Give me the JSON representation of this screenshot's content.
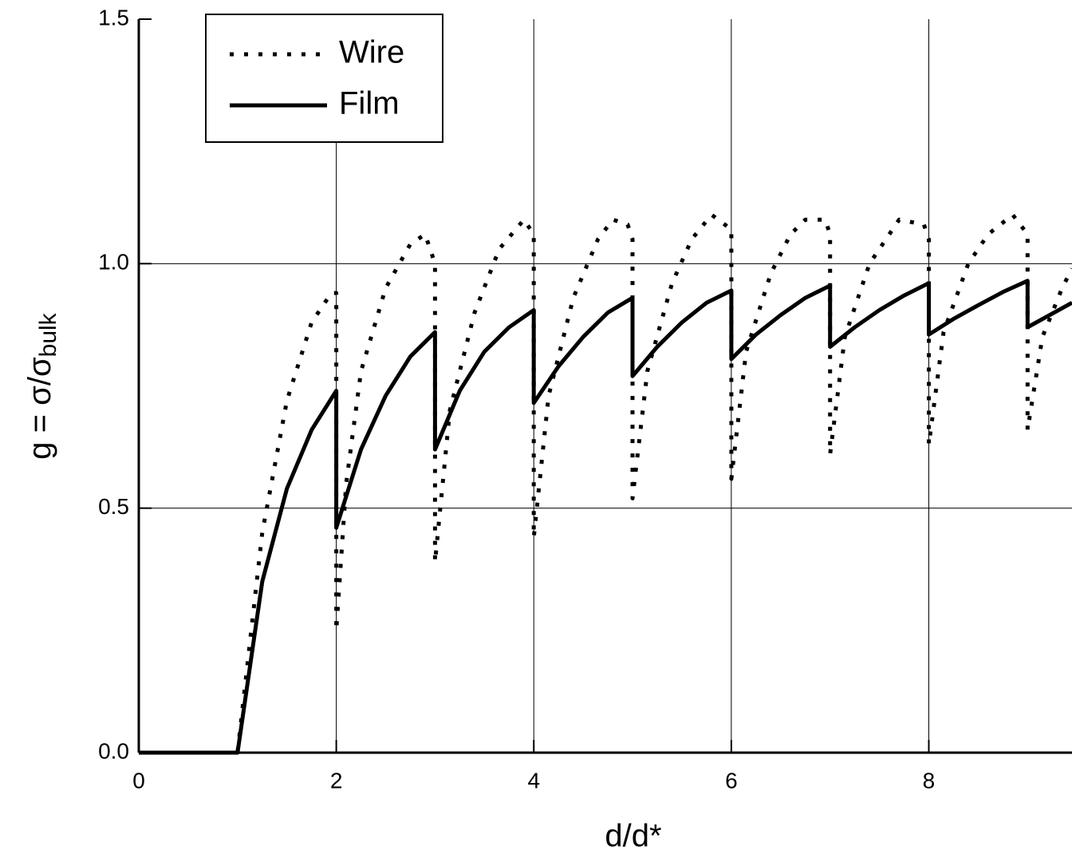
{
  "chart_data": {
    "type": "line",
    "xlabel": "d/d*",
    "ylabel": {
      "text": "g = σ/σ",
      "subscript": "bulk"
    },
    "xlim": [
      0,
      9.45
    ],
    "ylim": [
      0,
      1.5
    ],
    "xticks": [
      0,
      2,
      4,
      6,
      8
    ],
    "yticks": [
      {
        "value": 0,
        "label": "0.0"
      },
      0.5,
      {
        "value": 1,
        "label": "1.0"
      },
      1.5
    ],
    "grid": true,
    "legend": "upper left",
    "series": [
      {
        "name": "Wire",
        "color": "#000000",
        "style": "dotted",
        "x": [
          0,
          1,
          1.25,
          1.5,
          1.75,
          1.95,
          2,
          2,
          2.1,
          2.25,
          2.5,
          2.75,
          2.9,
          3,
          3,
          3.15,
          3.4,
          3.65,
          3.9,
          4,
          4,
          4.15,
          4.4,
          4.65,
          4.8,
          4.95,
          5,
          5,
          5.15,
          5.4,
          5.6,
          5.8,
          6,
          6,
          6.15,
          6.4,
          6.6,
          6.75,
          6.95,
          7,
          7,
          7.15,
          7.4,
          7.7,
          7.95,
          8,
          8,
          8.15,
          8.4,
          8.6,
          8.85,
          9,
          9,
          9.15,
          9.35,
          9.45
        ],
        "values": [
          0,
          0,
          0.45,
          0.72,
          0.88,
          0.94,
          0.94,
          0.25,
          0.55,
          0.78,
          0.95,
          1.04,
          1.06,
          1.0,
          0.39,
          0.7,
          0.9,
          1.03,
          1.09,
          1.06,
          0.44,
          0.73,
          0.93,
          1.05,
          1.09,
          1.08,
          1.05,
          0.52,
          0.78,
          0.96,
          1.05,
          1.1,
          1.07,
          0.56,
          0.82,
          0.98,
          1.06,
          1.09,
          1.09,
          1.06,
          0.61,
          0.85,
          1.0,
          1.09,
          1.08,
          1.05,
          0.63,
          0.86,
          1.0,
          1.06,
          1.1,
          1.06,
          0.66,
          0.85,
          0.95,
          0.99
        ]
      },
      {
        "name": "Film",
        "color": "#000000",
        "style": "solid",
        "x": [
          0,
          1,
          1.25,
          1.5,
          1.75,
          2,
          2,
          2.25,
          2.5,
          2.75,
          3,
          3,
          3.25,
          3.5,
          3.75,
          4,
          4,
          4.25,
          4.5,
          4.75,
          5,
          5,
          5.25,
          5.5,
          5.75,
          6,
          6,
          6.25,
          6.5,
          6.75,
          7,
          7,
          7.25,
          7.5,
          7.75,
          8,
          8,
          8.25,
          8.5,
          8.75,
          9,
          9,
          9.45
        ],
        "values": [
          0,
          0,
          0.35,
          0.54,
          0.66,
          0.74,
          0.46,
          0.62,
          0.73,
          0.81,
          0.86,
          0.62,
          0.74,
          0.82,
          0.87,
          0.905,
          0.715,
          0.79,
          0.85,
          0.9,
          0.93,
          0.77,
          0.83,
          0.88,
          0.92,
          0.945,
          0.805,
          0.855,
          0.895,
          0.93,
          0.955,
          0.83,
          0.87,
          0.905,
          0.935,
          0.96,
          0.855,
          0.887,
          0.915,
          0.942,
          0.965,
          0.87,
          0.92
        ]
      }
    ]
  }
}
